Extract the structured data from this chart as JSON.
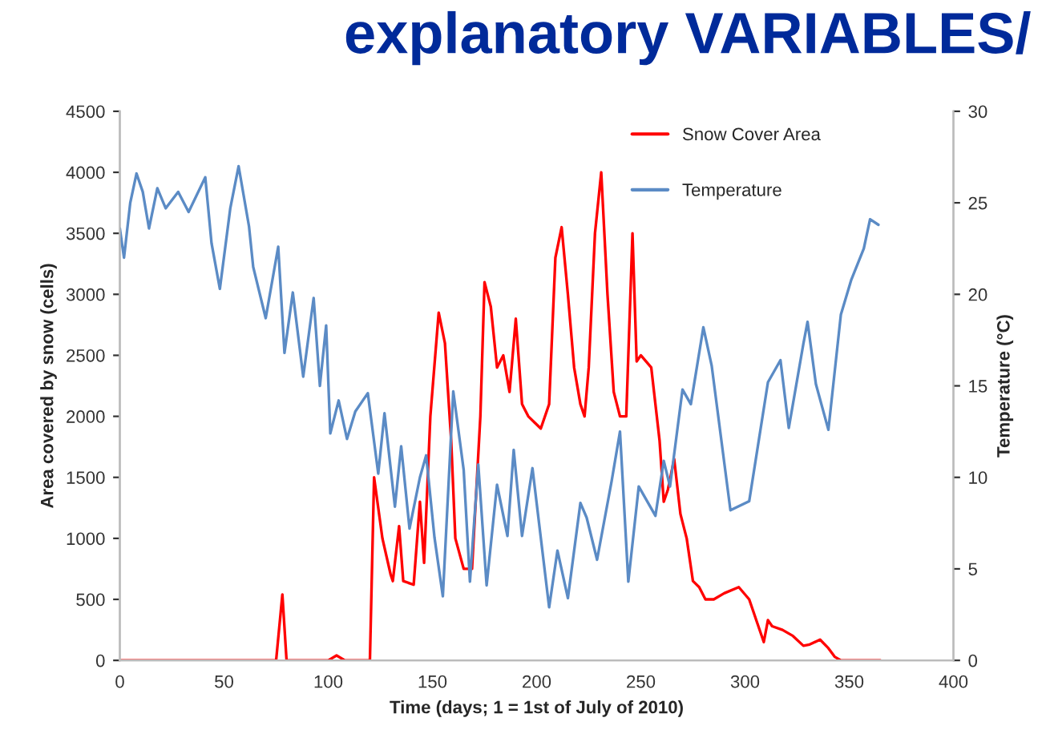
{
  "chart_data": {
    "type": "line",
    "title": "explanatory VARIABLES/",
    "xlabel": "Time (days; 1 = 1st of July of 2010)",
    "ylabel": "Area covered by snow (cells)",
    "y2label": "Temperature (°C)",
    "xlim": [
      0,
      400
    ],
    "xticks": [
      0,
      50,
      100,
      150,
      200,
      250,
      300,
      350,
      400
    ],
    "ylim": [
      0,
      4500
    ],
    "yticks": [
      0,
      500,
      1000,
      1500,
      2000,
      2500,
      3000,
      3500,
      4000,
      4500
    ],
    "y2lim": [
      0,
      30
    ],
    "y2ticks": [
      0,
      5,
      10,
      15,
      20,
      25,
      30
    ],
    "grid": false,
    "legend": "top right",
    "marker": "none",
    "line_style": "solid",
    "series": [
      {
        "name": "Snow Cover Area",
        "color": "#ff0000",
        "x": [
          0,
          20,
          40,
          60,
          75,
          78,
          80,
          100,
          104,
          108,
          120,
          122,
          126,
          130,
          131,
          134,
          136,
          141,
          144,
          146,
          149,
          153,
          156,
          159,
          161,
          165,
          169,
          173,
          175,
          178,
          181,
          184,
          187,
          190,
          193,
          196,
          199,
          202,
          206,
          209,
          212,
          215,
          218,
          221,
          223,
          225,
          228,
          231,
          234,
          237,
          240,
          243,
          246,
          248,
          250,
          255,
          259,
          261,
          263,
          266,
          269,
          272,
          275,
          278,
          281,
          285,
          290,
          297,
          302,
          306,
          309,
          311,
          313,
          318,
          323,
          328,
          331,
          336,
          340,
          343,
          346,
          350,
          365
        ],
        "values": [
          0,
          0,
          0,
          0,
          0,
          540,
          0,
          0,
          40,
          0,
          0,
          1500,
          1000,
          700,
          650,
          1100,
          650,
          620,
          1300,
          800,
          2000,
          2850,
          2600,
          1800,
          1000,
          750,
          750,
          2000,
          3100,
          2900,
          2400,
          2500,
          2200,
          2800,
          2100,
          2000,
          1950,
          1900,
          2100,
          3300,
          3550,
          3000,
          2400,
          2100,
          2000,
          2400,
          3500,
          4000,
          3000,
          2200,
          2000,
          2000,
          3500,
          2450,
          2500,
          2400,
          1800,
          1300,
          1400,
          1650,
          1200,
          1000,
          650,
          600,
          500,
          500,
          550,
          600,
          500,
          300,
          150,
          330,
          280,
          250,
          200,
          120,
          130,
          170,
          100,
          30,
          0,
          0,
          0
        ]
      },
      {
        "name": "Temperature",
        "color": "#5b8bc5",
        "axis": "y2",
        "x": [
          0,
          2,
          5,
          8,
          11,
          14,
          18,
          22,
          28,
          33,
          41,
          44,
          48,
          53,
          57,
          62,
          64,
          70,
          76,
          79,
          83,
          88,
          93,
          96,
          99,
          101,
          105,
          109,
          113,
          119,
          124,
          127,
          132,
          135,
          139,
          144,
          147,
          151,
          155,
          160,
          165,
          168,
          172,
          176,
          181,
          186,
          189,
          193,
          198,
          206,
          210,
          215,
          221,
          224,
          229,
          236,
          240,
          244,
          249,
          257,
          261,
          264,
          270,
          274,
          280,
          284,
          293,
          302,
          311,
          317,
          321,
          328,
          330,
          334,
          340,
          346,
          351,
          357,
          360,
          364
        ],
        "values": [
          23.6,
          22.0,
          25.0,
          26.6,
          25.6,
          23.6,
          25.8,
          24.7,
          25.6,
          24.5,
          26.4,
          22.8,
          20.3,
          24.7,
          27.0,
          23.7,
          21.5,
          18.7,
          22.6,
          16.8,
          20.1,
          15.5,
          19.8,
          15.0,
          18.3,
          12.4,
          14.2,
          12.1,
          13.6,
          14.6,
          10.2,
          13.5,
          8.4,
          11.7,
          7.2,
          10.0,
          11.2,
          6.7,
          3.5,
          14.7,
          10.4,
          4.3,
          10.7,
          4.1,
          9.6,
          6.8,
          11.5,
          6.8,
          10.5,
          2.9,
          6.0,
          3.4,
          8.6,
          7.8,
          5.5,
          9.8,
          12.5,
          4.3,
          9.5,
          7.9,
          10.9,
          9.5,
          14.8,
          14.0,
          18.2,
          16.1,
          8.2,
          8.7,
          15.2,
          16.4,
          12.7,
          17.3,
          18.5,
          15.1,
          12.6,
          18.9,
          20.8,
          22.5,
          24.1,
          23.8
        ]
      }
    ]
  }
}
